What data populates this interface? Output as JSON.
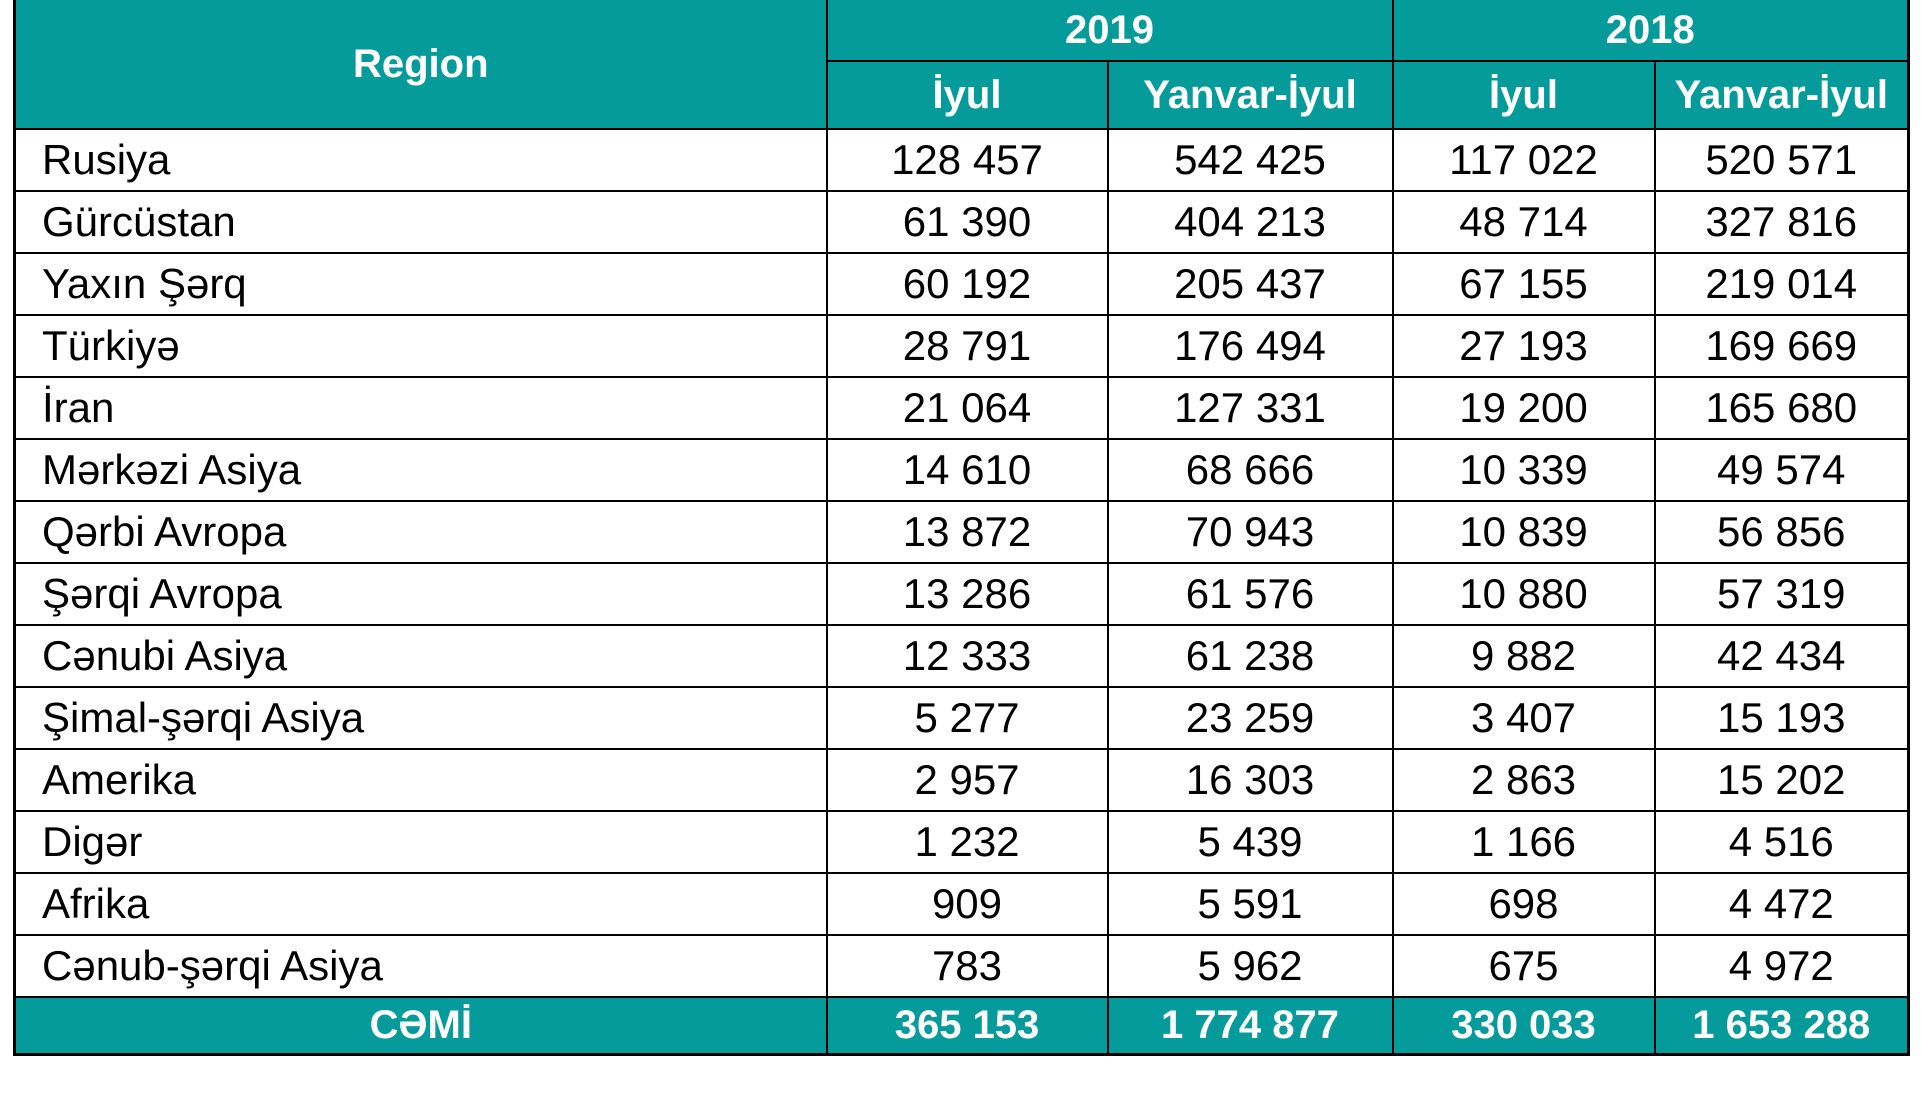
{
  "table": {
    "header": {
      "region_label": "Region",
      "year_groups": [
        {
          "year": "2019",
          "months": [
            "İyul",
            "Yanvar-İyul"
          ]
        },
        {
          "year": "2018",
          "months": [
            "İyul",
            "Yanvar-İyul"
          ]
        }
      ]
    },
    "rows": [
      {
        "region": "Rusiya",
        "values": [
          "128 457",
          "542 425",
          "117 022",
          "520 571"
        ]
      },
      {
        "region": "Gürcüstan",
        "values": [
          "61 390",
          "404 213",
          "48 714",
          "327 816"
        ]
      },
      {
        "region": "Yaxın Şərq",
        "values": [
          "60 192",
          "205 437",
          "67 155",
          "219 014"
        ]
      },
      {
        "region": "Türkiyə",
        "values": [
          "28 791",
          "176 494",
          "27 193",
          "169 669"
        ]
      },
      {
        "region": "İran",
        "values": [
          "21 064",
          "127 331",
          "19 200",
          "165 680"
        ]
      },
      {
        "region": "Mərkəzi Asiya",
        "values": [
          "14 610",
          "68 666",
          "10 339",
          "49 574"
        ]
      },
      {
        "region": "Qərbi Avropa",
        "values": [
          "13 872",
          "70 943",
          "10 839",
          "56 856"
        ]
      },
      {
        "region": "Şərqi Avropa",
        "values": [
          "13 286",
          "61 576",
          "10 880",
          "57 319"
        ]
      },
      {
        "region": "Cənubi Asiya",
        "values": [
          "12 333",
          "61 238",
          "9 882",
          "42 434"
        ]
      },
      {
        "region": "Şimal-şərqi Asiya",
        "values": [
          "5 277",
          "23 259",
          "3 407",
          "15 193"
        ]
      },
      {
        "region": "Amerika",
        "values": [
          "2 957",
          "16 303",
          "2 863",
          "15 202"
        ]
      },
      {
        "region": "Digər",
        "values": [
          "1 232",
          "5 439",
          "1 166",
          "4 516"
        ]
      },
      {
        "region": "Afrika",
        "values": [
          "909",
          "5 591",
          "698",
          "4 472"
        ]
      },
      {
        "region": "Cənub-şərqi Asiya",
        "values": [
          "783",
          "5 962",
          "675",
          "4 972"
        ]
      }
    ],
    "total": {
      "label": "CƏMİ",
      "values": [
        "365 153",
        "1 774 877",
        "330 033",
        "1 653 288"
      ]
    },
    "colors": {
      "header_bg": "#069b9b",
      "header_text": "#ffffff",
      "body_text": "#000000",
      "border": "#000000"
    }
  },
  "chart_data": {
    "type": "table",
    "columns": [
      "Region",
      "2019 İyul",
      "2019 Yanvar-İyul",
      "2018 İyul",
      "2018 Yanvar-İyul"
    ],
    "rows": [
      [
        "Rusiya",
        128457,
        542425,
        117022,
        520571
      ],
      [
        "Gürcüstan",
        61390,
        404213,
        48714,
        327816
      ],
      [
        "Yaxın Şərq",
        60192,
        205437,
        67155,
        219014
      ],
      [
        "Türkiyə",
        28791,
        176494,
        27193,
        169669
      ],
      [
        "İran",
        21064,
        127331,
        19200,
        165680
      ],
      [
        "Mərkəzi Asiya",
        14610,
        68666,
        10339,
        49574
      ],
      [
        "Qərbi Avropa",
        13872,
        70943,
        10839,
        56856
      ],
      [
        "Şərqi Avropa",
        13286,
        61576,
        10880,
        57319
      ],
      [
        "Cənubi Asiya",
        12333,
        61238,
        9882,
        42434
      ],
      [
        "Şimal-şərqi Asiya",
        5277,
        23259,
        3407,
        15193
      ],
      [
        "Amerika",
        2957,
        16303,
        2863,
        15202
      ],
      [
        "Digər",
        1232,
        5439,
        1166,
        4516
      ],
      [
        "Afrika",
        909,
        5591,
        698,
        4472
      ],
      [
        "Cənub-şərqi Asiya",
        783,
        5962,
        675,
        4972
      ]
    ],
    "total_row": [
      "CƏMİ",
      365153,
      1774877,
      330033,
      1653288
    ],
    "legend_position": "none",
    "grid": true
  }
}
